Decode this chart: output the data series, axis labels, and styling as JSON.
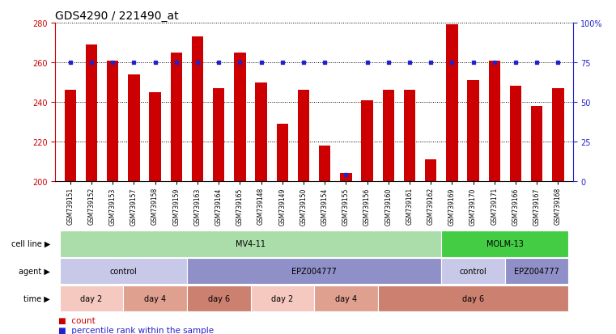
{
  "title": "GDS4290 / 221490_at",
  "samples": [
    "GSM739151",
    "GSM739152",
    "GSM739153",
    "GSM739157",
    "GSM739158",
    "GSM739159",
    "GSM739163",
    "GSM739164",
    "GSM739165",
    "GSM739148",
    "GSM739149",
    "GSM739150",
    "GSM739154",
    "GSM739155",
    "GSM739156",
    "GSM739160",
    "GSM739161",
    "GSM739162",
    "GSM739169",
    "GSM739170",
    "GSM739171",
    "GSM739166",
    "GSM739167",
    "GSM739168"
  ],
  "counts": [
    246,
    269,
    261,
    254,
    245,
    265,
    273,
    247,
    265,
    250,
    229,
    246,
    218,
    204,
    241,
    246,
    246,
    211,
    279,
    251,
    261,
    248,
    238,
    247
  ],
  "percentile_ranks": [
    75,
    75,
    75,
    75,
    75,
    75,
    75,
    75,
    75,
    75,
    75,
    75,
    75,
    4,
    75,
    75,
    75,
    75,
    75,
    75,
    75,
    75,
    75,
    75
  ],
  "bar_color": "#cc0000",
  "dot_color": "#2222cc",
  "ylim_left": [
    200,
    280
  ],
  "ylim_right": [
    0,
    100
  ],
  "yticks_left": [
    200,
    220,
    240,
    260,
    280
  ],
  "yticks_right": [
    0,
    25,
    50,
    75,
    100
  ],
  "cell_line_rows": [
    {
      "label": "MV4-11",
      "start": 0,
      "end": 18,
      "color": "#aaddaa"
    },
    {
      "label": "MOLM-13",
      "start": 18,
      "end": 24,
      "color": "#44cc44"
    }
  ],
  "agent_rows": [
    {
      "label": "control",
      "start": 0,
      "end": 6,
      "color": "#c8c8e8"
    },
    {
      "label": "EPZ004777",
      "start": 6,
      "end": 18,
      "color": "#9090c8"
    },
    {
      "label": "control",
      "start": 18,
      "end": 21,
      "color": "#c8c8e8"
    },
    {
      "label": "EPZ004777",
      "start": 21,
      "end": 24,
      "color": "#9090c8"
    }
  ],
  "time_rows": [
    {
      "label": "day 2",
      "start": 0,
      "end": 3,
      "color": "#f5c8c0"
    },
    {
      "label": "day 4",
      "start": 3,
      "end": 6,
      "color": "#e0a090"
    },
    {
      "label": "day 6",
      "start": 6,
      "end": 9,
      "color": "#cc8070"
    },
    {
      "label": "day 2",
      "start": 9,
      "end": 12,
      "color": "#f5c8c0"
    },
    {
      "label": "day 4",
      "start": 12,
      "end": 15,
      "color": "#e0a090"
    },
    {
      "label": "day 6",
      "start": 15,
      "end": 24,
      "color": "#cc8070"
    }
  ],
  "row_labels": [
    "cell line",
    "agent",
    "time"
  ],
  "background_color": "#ffffff",
  "title_fontsize": 10,
  "tick_fontsize": 7,
  "bar_width": 0.55
}
